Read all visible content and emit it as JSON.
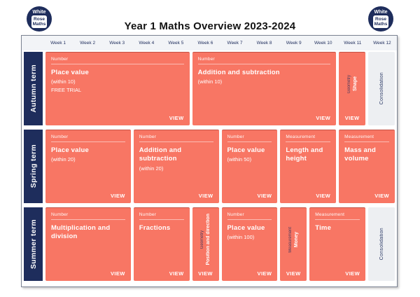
{
  "colors": {
    "coral": "#f87664",
    "navy": "#1e2d5c",
    "header_strip": "#f2f4f7",
    "consolidation_bg": "#edeff2"
  },
  "header": {
    "title": "Year 1 Maths Overview 2023-2024",
    "logo": {
      "top": "White",
      "mid": "Rose",
      "bottom": "Maths"
    }
  },
  "weeks": [
    "Week 1",
    "Week 2",
    "Week 3",
    "Week 4",
    "Week 5",
    "Week 6",
    "Week 7",
    "Week 8",
    "Week 9",
    "Week 10",
    "Week 11",
    "Week 12"
  ],
  "terms": [
    {
      "label": "Autumn term",
      "blocks": [
        {
          "type": "topic",
          "category": "Number",
          "title": "Place value",
          "subtitle": "(within 10)",
          "extra": "FREE TRIAL",
          "action": "VIEW",
          "col": 1,
          "span": 5
        },
        {
          "type": "topic",
          "category": "Number",
          "title": "Addition and subtraction",
          "subtitle": "(within 10)",
          "action": "VIEW",
          "col": 6,
          "span": 5
        },
        {
          "type": "vertical",
          "category": "Geometry",
          "title": "Shape",
          "action": "VIEW",
          "col": 11,
          "span": 1
        },
        {
          "type": "consolidation",
          "title": "Consolidation",
          "col": 12,
          "span": 1
        }
      ]
    },
    {
      "label": "Spring term",
      "blocks": [
        {
          "type": "topic",
          "category": "Number",
          "title": "Place value",
          "subtitle": "(within 20)",
          "action": "VIEW",
          "col": 1,
          "span": 3
        },
        {
          "type": "topic",
          "category": "Number",
          "title": "Addition and subtraction",
          "subtitle": "(within 20)",
          "action": "VIEW",
          "col": 4,
          "span": 3
        },
        {
          "type": "topic",
          "category": "Number",
          "title": "Place value",
          "subtitle": "(within 50)",
          "action": "VIEW",
          "col": 7,
          "span": 2
        },
        {
          "type": "topic",
          "category": "Measurement",
          "title": "Length and height",
          "action": "VIEW",
          "col": 9,
          "span": 2
        },
        {
          "type": "topic",
          "category": "Measurement",
          "title": "Mass and volume",
          "action": "VIEW",
          "col": 11,
          "span": 2
        }
      ]
    },
    {
      "label": "Summer term",
      "blocks": [
        {
          "type": "topic",
          "category": "Number",
          "title": "Multiplication and division",
          "action": "VIEW",
          "col": 1,
          "span": 3
        },
        {
          "type": "topic",
          "category": "Number",
          "title": "Fractions",
          "action": "VIEW",
          "col": 4,
          "span": 2
        },
        {
          "type": "vertical",
          "category": "Geometry",
          "title": "Position and direction",
          "action": "VIEW",
          "col": 6,
          "span": 1
        },
        {
          "type": "topic",
          "category": "Number",
          "title": "Place value",
          "subtitle": "(within 100)",
          "action": "VIEW",
          "col": 7,
          "span": 2
        },
        {
          "type": "vertical",
          "category": "Measurement",
          "title": "Money",
          "action": "VIEW",
          "col": 9,
          "span": 1
        },
        {
          "type": "topic",
          "category": "Measurement",
          "title": "Time",
          "action": "VIEW",
          "col": 10,
          "span": 2
        },
        {
          "type": "consolidation",
          "title": "Consolidation",
          "col": 12,
          "span": 1
        }
      ]
    }
  ]
}
